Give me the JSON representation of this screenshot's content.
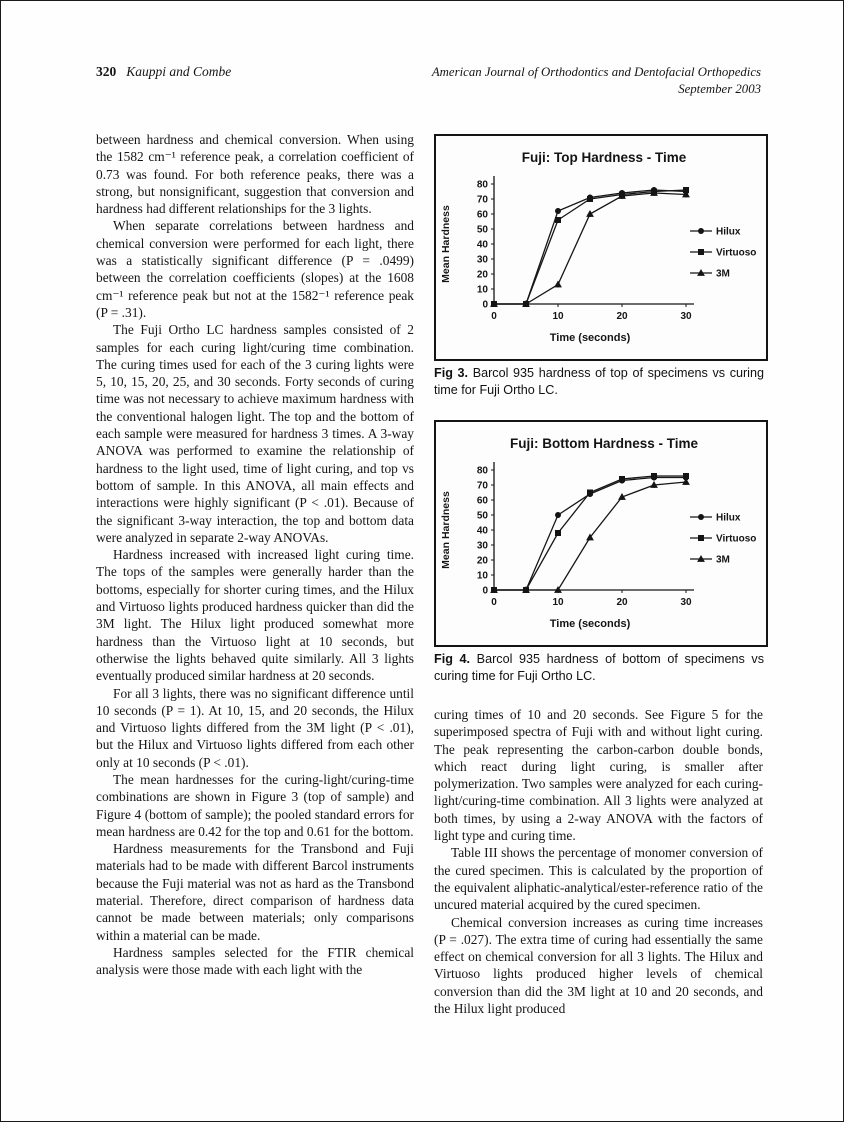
{
  "header": {
    "page_number": "320",
    "running_authors": "Kauppi and Combe",
    "journal_line1": "American Journal of Orthodontics and Dentofacial Orthopedics",
    "journal_line2": "September 2003"
  },
  "left_column": {
    "paragraphs": [
      {
        "indent": false,
        "text": "between hardness and chemical conversion. When using the 1582 cm⁻¹ reference peak, a correlation coefficient of 0.73 was found. For both reference peaks, there was a strong, but nonsignificant, suggestion that conversion and hardness had different relationships for the 3 lights."
      },
      {
        "indent": true,
        "text": "When separate correlations between hardness and chemical conversion were performed for each light, there was a statistically significant difference (P = .0499) between the correlation coefficients (slopes) at the 1608 cm⁻¹ reference peak but not at the 1582⁻¹ reference peak (P = .31)."
      },
      {
        "indent": true,
        "text": "The Fuji Ortho LC hardness samples consisted of 2 samples for each curing light/curing time combination. The curing times used for each of the 3 curing lights were 5, 10, 15, 20, 25, and 30 seconds. Forty seconds of curing time was not necessary to achieve maximum hardness with the conventional halogen light. The top and the bottom of each sample were measured for hardness 3 times. A 3-way ANOVA was performed to examine the relationship of hardness to the light used, time of light curing, and top vs bottom of sample. In this ANOVA, all main effects and interactions were highly significant (P < .01). Because of the significant 3-way interaction, the top and bottom data were analyzed in separate 2-way ANOVAs."
      },
      {
        "indent": true,
        "text": "Hardness increased with increased light curing time. The tops of the samples were generally harder than the bottoms, especially for shorter curing times, and the Hilux and Virtuoso lights produced hardness quicker than did the 3M light. The Hilux light produced somewhat more hardness than the Virtuoso light at 10 seconds, but otherwise the lights behaved quite similarly. All 3 lights eventually produced similar hardness at 20 seconds."
      },
      {
        "indent": true,
        "text": "For all 3 lights, there was no significant difference until 10 seconds (P = 1). At 10, 15, and 20 seconds, the Hilux and Virtuoso lights differed from the 3M light (P < .01), but the Hilux and Virtuoso lights differed from each other only at 10 seconds (P < .01)."
      },
      {
        "indent": true,
        "text": "The mean hardnesses for the curing-light/curing-time combinations are shown in Figure 3 (top of sample) and Figure 4 (bottom of sample); the pooled standard errors for mean hardness are 0.42 for the top and 0.61 for the bottom."
      },
      {
        "indent": true,
        "text": "Hardness measurements for the Transbond and Fuji materials had to be made with different Barcol instruments because the Fuji material was not as hard as the Transbond material. Therefore, direct comparison of hardness data cannot be made between materials; only comparisons within a material can be made."
      },
      {
        "indent": true,
        "text": "Hardness samples selected for the FTIR chemical analysis were those made with each light with the"
      }
    ]
  },
  "right_column": {
    "paragraphs": [
      {
        "indent": false,
        "text": "curing times of 10 and 20 seconds. See Figure 5 for the superimposed spectra of Fuji with and without light curing. The peak representing the carbon-carbon double bonds, which react during light curing, is smaller after polymerization. Two samples were analyzed for each curing-light/curing-time combination. All 3 lights were analyzed at both times, by using a 2-way ANOVA with the factors of light type and curing time."
      },
      {
        "indent": true,
        "text": "Table III shows the percentage of monomer conversion of the cured specimen. This is calculated by the proportion of the equivalent aliphatic-analytical/ester-reference ratio of the uncured material acquired by the cured specimen."
      },
      {
        "indent": true,
        "text": "Chemical conversion increases as curing time increases (P = .027). The extra time of curing had essentially the same effect on chemical conversion for all 3 lights. The Hilux and Virtuoso lights produced higher levels of chemical conversion than did the 3M light at 10 and 20 seconds, and the Hilux light produced"
      }
    ]
  },
  "figures": [
    {
      "caption_label": "Fig 3.",
      "caption_text": " Barcol 935 hardness of top of specimens vs curing time for Fuji Ortho LC.",
      "chart_data": {
        "type": "line",
        "title": "Fuji: Top Hardness - Time",
        "xlabel": "Time (seconds)",
        "ylabel": "Mean Hardness",
        "xlim": [
          0,
          30
        ],
        "ylim": [
          0,
          80
        ],
        "xticks": [
          0,
          10,
          20,
          30
        ],
        "yticks": [
          0,
          10,
          20,
          30,
          40,
          50,
          60,
          70,
          80
        ],
        "x": [
          0,
          5,
          10,
          15,
          20,
          25,
          30
        ],
        "series": [
          {
            "name": "Hilux",
            "marker": "circle",
            "values": [
              0,
              0,
              62,
              71,
              74,
              76,
              75
            ]
          },
          {
            "name": "Virtuoso",
            "marker": "square",
            "values": [
              0,
              0,
              56,
              70,
              73,
              75,
              76
            ]
          },
          {
            "name": "3M",
            "marker": "triangle",
            "values": [
              0,
              0,
              13,
              60,
              72,
              74,
              73
            ]
          }
        ],
        "error_bar": 2,
        "legend_position": "right",
        "line_color": "#161616",
        "grid": false
      }
    },
    {
      "caption_label": "Fig 4.",
      "caption_text": " Barcol 935 hardness of bottom of specimens vs curing time for Fuji Ortho LC.",
      "chart_data": {
        "type": "line",
        "title": "Fuji: Bottom Hardness - Time",
        "xlabel": "Time (seconds)",
        "ylabel": "Mean Hardness",
        "xlim": [
          0,
          30
        ],
        "ylim": [
          0,
          80
        ],
        "xticks": [
          0,
          10,
          20,
          30
        ],
        "yticks": [
          0,
          10,
          20,
          30,
          40,
          50,
          60,
          70,
          80
        ],
        "x": [
          0,
          5,
          10,
          15,
          20,
          25,
          30
        ],
        "series": [
          {
            "name": "Hilux",
            "marker": "circle",
            "values": [
              0,
              0,
              50,
              64,
              73,
              75,
              75
            ]
          },
          {
            "name": "Virtuoso",
            "marker": "square",
            "values": [
              0,
              0,
              38,
              65,
              74,
              76,
              76
            ]
          },
          {
            "name": "3M",
            "marker": "triangle",
            "values": [
              0,
              0,
              0,
              35,
              62,
              70,
              72
            ]
          }
        ],
        "error_bar": 2,
        "legend_position": "right",
        "line_color": "#161616",
        "grid": false
      }
    }
  ]
}
